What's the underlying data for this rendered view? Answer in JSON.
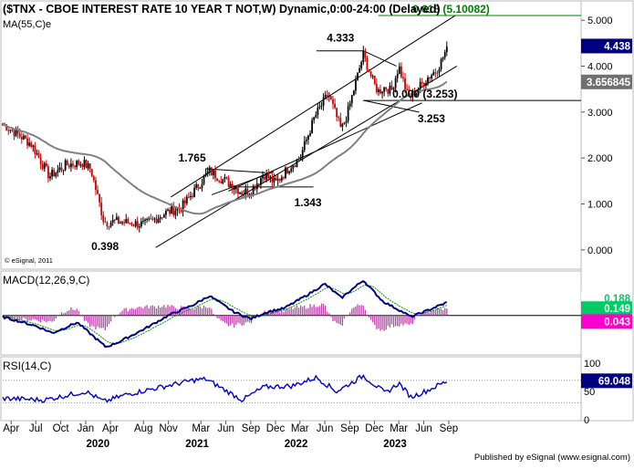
{
  "header": {
    "title": "($TNX - CBOE INTEREST RATE 10 YEAR T NOT,W) Dynamic,0:00-24:00 (Delayed)",
    "ma_label": "MA(55,C)e",
    "watermark": "© eSignal, 2011",
    "publisher": "Published by eSignal (www.esignal.com)"
  },
  "colors": {
    "up_candle": "#000000",
    "down_candle": "#cc0000",
    "ma_line": "#808080",
    "fib_line": "#008000",
    "macd_line": "#000080",
    "macd_signal": "#009900",
    "macd_hist": "#bb44aa",
    "rsi_line": "#0000cc",
    "price_tag_bg": "#000080",
    "ma_tag_bg": "#707070",
    "macd_tag_bg": "#00cc66",
    "hist_tag_bg": "#ff00cc"
  },
  "chart_data": [
    {
      "type": "candlestick",
      "name": "price",
      "ylim": [
        -0.4,
        5.4
      ],
      "y_ticks": [
        "0.000",
        "1.000",
        "2.000",
        "3.000",
        "4.000",
        "5.000"
      ],
      "last_value": "4.438",
      "ma_value": "3.656845",
      "ma_period": 55,
      "anchors": [
        {
          "date": "2019-03-01",
          "value": 2.75
        },
        {
          "date": "2019-06-15",
          "value": 2.3
        },
        {
          "date": "2019-08-20",
          "value": 1.6
        },
        {
          "date": "2019-10-20",
          "value": 1.85
        },
        {
          "date": "2019-12-20",
          "value": 1.9
        },
        {
          "date": "2020-01-20",
          "value": 1.75
        },
        {
          "date": "2020-03-09",
          "value": 0.6
        },
        {
          "date": "2020-04-20",
          "value": 0.62
        },
        {
          "date": "2020-08-05",
          "value": 0.55
        },
        {
          "date": "2020-10-20",
          "value": 0.8
        },
        {
          "date": "2020-12-20",
          "value": 0.93
        },
        {
          "date": "2021-02-20",
          "value": 1.4
        },
        {
          "date": "2021-03-31",
          "value": 1.72
        },
        {
          "date": "2021-05-01",
          "value": 1.6
        },
        {
          "date": "2021-06-15",
          "value": 1.45
        },
        {
          "date": "2021-08-01",
          "value": 1.25
        },
        {
          "date": "2021-09-01",
          "value": 1.3
        },
        {
          "date": "2021-10-20",
          "value": 1.65
        },
        {
          "date": "2021-12-01",
          "value": 1.45
        },
        {
          "date": "2022-01-20",
          "value": 1.8
        },
        {
          "date": "2022-03-01",
          "value": 2.0
        },
        {
          "date": "2022-04-25",
          "value": 2.9
        },
        {
          "date": "2022-06-14",
          "value": 3.4
        },
        {
          "date": "2022-08-01",
          "value": 2.6
        },
        {
          "date": "2022-08-25",
          "value": 3.0
        },
        {
          "date": "2022-09-30",
          "value": 3.8
        },
        {
          "date": "2022-10-21",
          "value": 4.25
        },
        {
          "date": "2022-11-30",
          "value": 3.6
        },
        {
          "date": "2022-12-15",
          "value": 3.45
        },
        {
          "date": "2023-01-10",
          "value": 3.55
        },
        {
          "date": "2023-02-01",
          "value": 3.45
        },
        {
          "date": "2023-03-01",
          "value": 4.0
        },
        {
          "date": "2023-04-05",
          "value": 3.3
        },
        {
          "date": "2023-05-01",
          "value": 3.45
        },
        {
          "date": "2023-06-15",
          "value": 3.75
        },
        {
          "date": "2023-07-15",
          "value": 3.9
        },
        {
          "date": "2023-08-04",
          "value": 4.1
        },
        {
          "date": "2023-08-22",
          "value": 4.35
        },
        {
          "date": "2023-08-28",
          "value": 4.32
        }
      ],
      "annotations": [
        {
          "label": "0.398",
          "date": "2020-03-09",
          "value": 0.398
        },
        {
          "label": "1.765",
          "date": "2021-03-19",
          "value": 1.765
        },
        {
          "label": "1.343",
          "date": "2021-12-03",
          "value": 1.343
        },
        {
          "label": "4.333",
          "date": "2022-10-21",
          "value": 4.333
        },
        {
          "label": "3.253",
          "date": "2023-04-06",
          "value": 3.253
        },
        {
          "label": "0.000 (3.253)",
          "value": 3.253
        },
        {
          "label": "0.618 (5.10082)",
          "value": 5.10082
        }
      ]
    },
    {
      "type": "line",
      "name": "MACD(12,26,9,C)",
      "title": "MACD(12,26,9,C)",
      "tags": [
        "0.188",
        "0.149",
        "0.043"
      ],
      "anchors": [
        {
          "date": "2019-03-01",
          "value": -0.02
        },
        {
          "date": "2019-07-01",
          "value": -0.15
        },
        {
          "date": "2019-09-01",
          "value": -0.25
        },
        {
          "date": "2019-12-01",
          "value": -0.1
        },
        {
          "date": "2020-03-15",
          "value": -0.45
        },
        {
          "date": "2020-05-01",
          "value": -0.38
        },
        {
          "date": "2020-08-01",
          "value": -0.2
        },
        {
          "date": "2020-11-01",
          "value": 0.0
        },
        {
          "date": "2021-02-01",
          "value": 0.15
        },
        {
          "date": "2021-04-01",
          "value": 0.28
        },
        {
          "date": "2021-07-01",
          "value": 0.05
        },
        {
          "date": "2021-09-01",
          "value": -0.05
        },
        {
          "date": "2021-11-01",
          "value": 0.05
        },
        {
          "date": "2022-01-01",
          "value": 0.1
        },
        {
          "date": "2022-04-01",
          "value": 0.3
        },
        {
          "date": "2022-06-01",
          "value": 0.45
        },
        {
          "date": "2022-08-01",
          "value": 0.25
        },
        {
          "date": "2022-10-21",
          "value": 0.5
        },
        {
          "date": "2023-01-01",
          "value": 0.2
        },
        {
          "date": "2023-03-01",
          "value": 0.08
        },
        {
          "date": "2023-04-15",
          "value": -0.02
        },
        {
          "date": "2023-06-01",
          "value": 0.05
        },
        {
          "date": "2023-08-28",
          "value": 0.19
        }
      ]
    },
    {
      "type": "line",
      "name": "RSI(14,C)",
      "title": "RSI(14,C)",
      "ylim": [
        0,
        110
      ],
      "y_ticks": [
        "0",
        "50",
        "100"
      ],
      "last_value": "69.048",
      "anchors": [
        {
          "date": "2019-03-01",
          "value": 38
        },
        {
          "date": "2019-08-01",
          "value": 35
        },
        {
          "date": "2020-01-01",
          "value": 50
        },
        {
          "date": "2020-03-09",
          "value": 32
        },
        {
          "date": "2020-06-01",
          "value": 45
        },
        {
          "date": "2021-02-01",
          "value": 70
        },
        {
          "date": "2021-03-19",
          "value": 72
        },
        {
          "date": "2021-08-01",
          "value": 35
        },
        {
          "date": "2021-10-20",
          "value": 58
        },
        {
          "date": "2022-02-01",
          "value": 60
        },
        {
          "date": "2022-05-01",
          "value": 75
        },
        {
          "date": "2022-07-15",
          "value": 50
        },
        {
          "date": "2022-10-21",
          "value": 78
        },
        {
          "date": "2023-01-10",
          "value": 47
        },
        {
          "date": "2023-03-01",
          "value": 65
        },
        {
          "date": "2023-04-15",
          "value": 40
        },
        {
          "date": "2023-06-15",
          "value": 52
        },
        {
          "date": "2023-08-28",
          "value": 69
        }
      ]
    }
  ],
  "x_axis": {
    "start_date": "2019-03-01",
    "end_date": "2023-10-05",
    "month_labels": [
      {
        "label": "Apr",
        "date": "2019-04-01"
      },
      {
        "label": "Jul",
        "date": "2019-07-01"
      },
      {
        "label": "Oct",
        "date": "2019-10-01"
      },
      {
        "label": "Jan",
        "date": "2020-01-01"
      },
      {
        "label": "Apr",
        "date": "2020-04-01"
      },
      {
        "label": "Aug",
        "date": "2020-08-01"
      },
      {
        "label": "Nov",
        "date": "2020-11-01"
      },
      {
        "label": "Mar",
        "date": "2021-03-01"
      },
      {
        "label": "Jun",
        "date": "2021-06-01"
      },
      {
        "label": "Sep",
        "date": "2021-09-01"
      },
      {
        "label": "Dec",
        "date": "2021-12-01"
      },
      {
        "label": "Mar",
        "date": "2022-03-01"
      },
      {
        "label": "Jun",
        "date": "2022-06-01"
      },
      {
        "label": "Sep",
        "date": "2022-09-01"
      },
      {
        "label": "Dec",
        "date": "2022-12-01"
      },
      {
        "label": "Mar",
        "date": "2023-03-01"
      },
      {
        "label": "Jun",
        "date": "2023-06-01"
      },
      {
        "label": "Sep",
        "date": "2023-09-01"
      }
    ],
    "year_labels": [
      {
        "label": "2020",
        "date": "2020-02-15"
      },
      {
        "label": "2021",
        "date": "2021-02-15"
      },
      {
        "label": "2022",
        "date": "2022-02-15"
      },
      {
        "label": "2023",
        "date": "2023-02-15"
      }
    ]
  }
}
